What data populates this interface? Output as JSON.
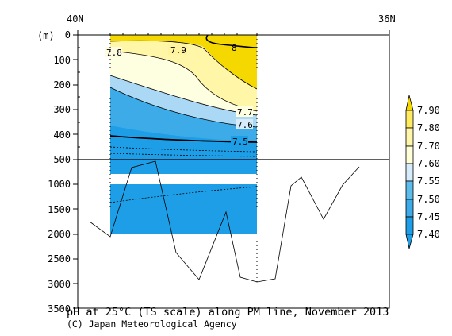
{
  "chart_data": {
    "type": "heatmap",
    "title": "pH at 25°C (TS scale) along PM line, November 2013",
    "credit": "(C) Japan Meteorological Agency",
    "x_labels": {
      "left": "40N",
      "right": "36N"
    },
    "y_unit": "(m)",
    "y_upper": {
      "range": [
        0,
        500
      ],
      "ticks": [
        "0",
        "100",
        "200",
        "300",
        "400",
        "500"
      ]
    },
    "y_lower": {
      "range": [
        500,
        3500
      ],
      "ticks": [
        "1000",
        "1500",
        "2000",
        "2500",
        "3000",
        "3500"
      ]
    },
    "colorbar": {
      "levels": [
        "7.40",
        "7.45",
        "7.50",
        "7.55",
        "7.60",
        "7.70",
        "7.80",
        "7.90"
      ],
      "colors": [
        "#1e9ee6",
        "#1e9ee6",
        "#3cabe8",
        "#5cbcec",
        "#d6ecfb",
        "#ffffd8",
        "#fff6a8",
        "#ffeb60",
        "#f5d800"
      ]
    },
    "contour_labels": [
      "7.8",
      "7.9",
      "8",
      "7.7",
      "7.6",
      "7.5"
    ]
  }
}
